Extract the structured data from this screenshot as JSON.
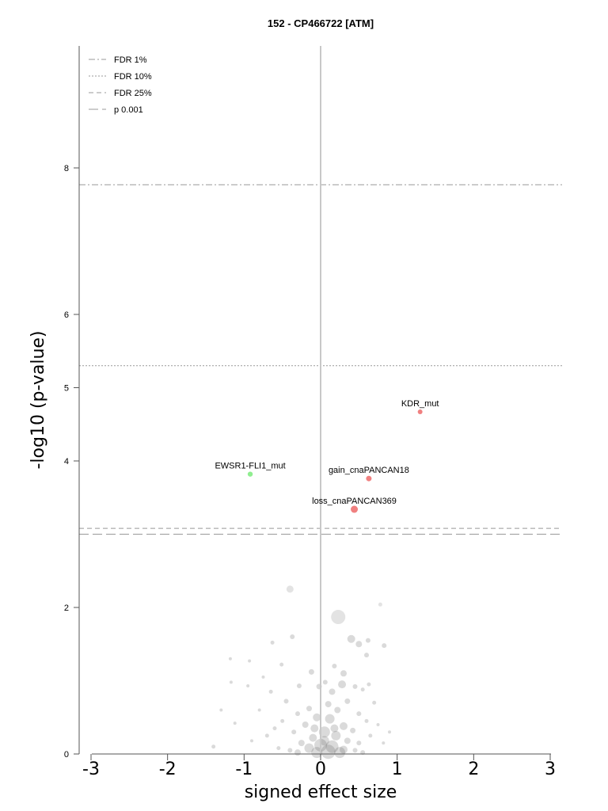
{
  "chart_data": {
    "type": "scatter",
    "title": "152 - CP466722 [ATM]",
    "xlabel": "signed effect size",
    "ylabel": "-log10 (p-value)",
    "xlim": [
      -3.15,
      3.15
    ],
    "ylim": [
      0,
      10
    ],
    "x_ticks": [
      "-3",
      "-2",
      "-1",
      "0",
      "1",
      "2",
      "3"
    ],
    "y_ticks": [
      "0",
      "2",
      "4",
      "5",
      "6",
      "8"
    ],
    "legend_position": "top-left",
    "thresholds": [
      {
        "name": "FDR 1%",
        "value": 7.77,
        "style": "dashdot"
      },
      {
        "name": "FDR 10%",
        "value": 5.3,
        "style": "dotted"
      },
      {
        "name": "FDR 25%",
        "value": 3.08,
        "style": "dashed"
      },
      {
        "name": "p 0.001",
        "value": 3.0,
        "style": "longdash"
      }
    ],
    "highlighted_points": [
      {
        "label": "KDR_mut",
        "x": 1.3,
        "y": 4.67,
        "color": "#f08080",
        "r": 3
      },
      {
        "label": "EWSR1-FLI1_mut",
        "x": -0.92,
        "y": 3.82,
        "color": "#90ee90",
        "r": 3.2
      },
      {
        "label": "gain_cnaPANCAN18",
        "x": 0.63,
        "y": 3.76,
        "color": "#f08080",
        "r": 3.5
      },
      {
        "label": "loss_cnaPANCAN369",
        "x": 0.44,
        "y": 3.34,
        "color": "#f08080",
        "r": 4.5
      }
    ],
    "background_points": [
      [
        -0.4,
        2.25,
        4.5
      ],
      [
        0.23,
        1.87,
        9
      ],
      [
        0.78,
        2.04,
        2.5
      ],
      [
        0.4,
        1.57,
        5
      ],
      [
        -0.37,
        1.6,
        3
      ],
      [
        0.62,
        1.55,
        3
      ],
      [
        0.5,
        1.5,
        4
      ],
      [
        0.6,
        1.35,
        3
      ],
      [
        0.83,
        1.48,
        3
      ],
      [
        -0.63,
        1.52,
        2.5
      ],
      [
        -0.51,
        1.22,
        2.5
      ],
      [
        -0.93,
        1.27,
        2
      ],
      [
        -1.18,
        1.3,
        2
      ],
      [
        -1.17,
        0.98,
        2
      ],
      [
        -0.95,
        0.93,
        2
      ],
      [
        -1.3,
        0.6,
        2
      ],
      [
        -1.12,
        0.42,
        2
      ],
      [
        -1.4,
        0.1,
        2.5
      ],
      [
        -0.12,
        1.12,
        3.5
      ],
      [
        0.18,
        1.2,
        3
      ],
      [
        0.3,
        1.1,
        4
      ],
      [
        0.06,
        0.98,
        3
      ],
      [
        -0.02,
        0.92,
        3.5
      ],
      [
        0.28,
        0.95,
        5
      ],
      [
        0.15,
        0.85,
        4
      ],
      [
        -0.28,
        0.93,
        3
      ],
      [
        0.45,
        0.92,
        3
      ],
      [
        0.55,
        0.88,
        2.5
      ],
      [
        0.63,
        0.95,
        2.5
      ],
      [
        0.7,
        0.7,
        2.5
      ],
      [
        -0.65,
        0.85,
        2.5
      ],
      [
        -0.45,
        0.72,
        3
      ],
      [
        0.35,
        0.72,
        3.5
      ],
      [
        0.1,
        0.68,
        4
      ],
      [
        -0.15,
        0.62,
        3.5
      ],
      [
        0.22,
        0.6,
        4
      ],
      [
        -0.3,
        0.55,
        3
      ],
      [
        0.5,
        0.55,
        3
      ],
      [
        0.6,
        0.45,
        2.5
      ],
      [
        -0.5,
        0.45,
        2.5
      ],
      [
        -0.05,
        0.5,
        5
      ],
      [
        0.12,
        0.48,
        6
      ],
      [
        -0.2,
        0.4,
        4
      ],
      [
        0.3,
        0.38,
        5
      ],
      [
        0.42,
        0.32,
        3.5
      ],
      [
        -0.35,
        0.3,
        3
      ],
      [
        0.05,
        0.3,
        7
      ],
      [
        0.2,
        0.25,
        6
      ],
      [
        -0.1,
        0.22,
        5
      ],
      [
        0.35,
        0.18,
        4
      ],
      [
        -0.25,
        0.15,
        4
      ],
      [
        0.5,
        0.15,
        3
      ],
      [
        0.0,
        0.12,
        8
      ],
      [
        0.15,
        0.1,
        8
      ],
      [
        -0.15,
        0.08,
        6
      ],
      [
        0.3,
        0.06,
        5
      ],
      [
        0.45,
        0.05,
        3
      ],
      [
        -0.4,
        0.05,
        3
      ],
      [
        0.1,
        0.03,
        9
      ],
      [
        -0.05,
        0.02,
        7
      ],
      [
        0.25,
        0.02,
        7
      ],
      [
        -0.3,
        0.02,
        4
      ],
      [
        0.55,
        0.02,
        3
      ],
      [
        -0.55,
        0.08,
        2.5
      ],
      [
        -0.7,
        0.25,
        2.5
      ],
      [
        -0.8,
        0.6,
        2
      ],
      [
        -0.6,
        0.35,
        2.5
      ],
      [
        0.65,
        0.25,
        2.5
      ],
      [
        0.75,
        0.4,
        2
      ],
      [
        0.82,
        0.15,
        2
      ],
      [
        -0.9,
        0.18,
        2
      ],
      [
        -0.75,
        1.05,
        2
      ],
      [
        0.9,
        0.3,
        2
      ],
      [
        0.05,
        0.18,
        6
      ],
      [
        0.18,
        0.35,
        5
      ],
      [
        -0.08,
        0.35,
        5
      ]
    ]
  }
}
